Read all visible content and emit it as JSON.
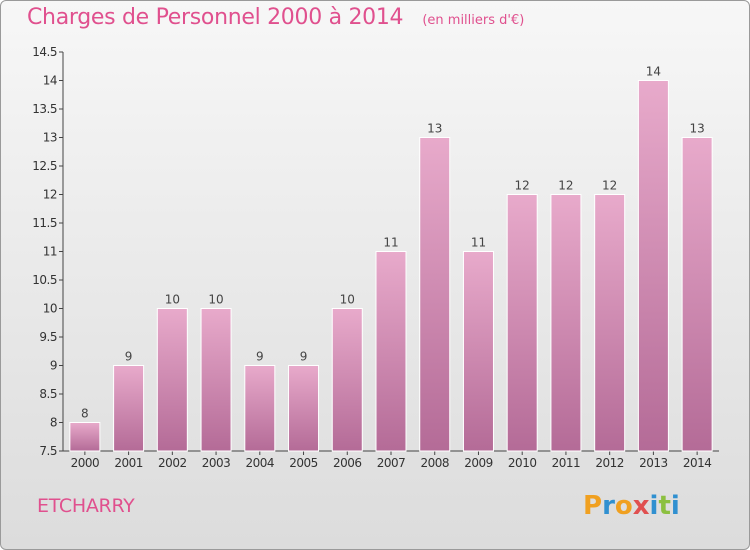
{
  "title": "Charges de Personnel 2000 à 2014",
  "unit_note": "(en milliers d'€)",
  "commune": "ETCHARRY",
  "logo": {
    "text": "Proxiti",
    "letter_colors": [
      "#f0a020",
      "#3090d0",
      "#f0a020",
      "#e05050",
      "#3090d0",
      "#8cc040",
      "#3090d0"
    ]
  },
  "colors": {
    "accent": "#e0508e",
    "bar_top": "#e8aacb",
    "bar_bottom": "#b46b97"
  },
  "chart_data": {
    "type": "bar",
    "categories": [
      "2000",
      "2001",
      "2002",
      "2003",
      "2004",
      "2005",
      "2006",
      "2007",
      "2008",
      "2009",
      "2010",
      "2011",
      "2012",
      "2013",
      "2014"
    ],
    "values": [
      8,
      9,
      10,
      10,
      9,
      9,
      10,
      11,
      13,
      11,
      12,
      12,
      12,
      14,
      13
    ],
    "ylim": [
      7.5,
      14.5
    ],
    "yticks": [
      "7.5",
      "8",
      "8.5",
      "9",
      "9.5",
      "10",
      "10.5",
      "11",
      "11.5",
      "12",
      "12.5",
      "13",
      "13.5",
      "14",
      "14.5"
    ],
    "grid": false
  }
}
